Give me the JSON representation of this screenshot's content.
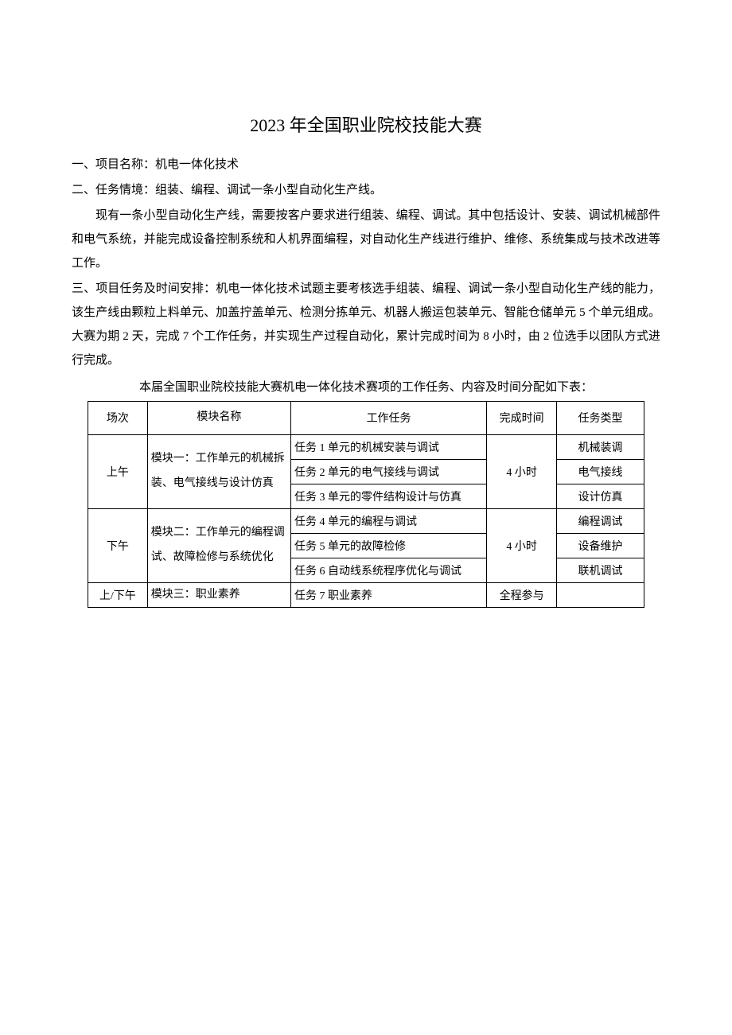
{
  "title": "2023 年全国职业院校技能大赛",
  "section1": "一、项目名称：机电一体化技术",
  "section2": "二、任务情境：组装、编程、调试一条小型自动化生产线。",
  "section2_p1": "现有一条小型自动化生产线，需要按客户要求进行组装、编程、调试。其中包括设计、安装、调试机械部件和电气系统，并能完成设备控制系统和人机界面编程，对自动化生产线进行维护、维修、系统集成与技术改进等工作。",
  "section3": "三、项目任务及时间安排：机电一体化技术试题主要考核选手组装、编程、调试一条小型自动化生产线的能力，该生产线由颗粒上料单元、加盖拧盖单元、检测分拣单元、机器人搬运包装单元、智能仓储单元 5 个单元组成。大赛为期 2 天，完成 7 个工作任务，并实现生产过程自动化，累计完成时间为 8 小时，由 2 位选手以团队方式进行完成。",
  "table_caption": "本届全国职业院校技能大赛机电一体化技术赛项的工作任务、内容及时间分配如下表：",
  "table": {
    "headers": {
      "session": "场次",
      "module": "模块名称",
      "task": "工作任务",
      "time": "完成时间",
      "type": "任务类型"
    },
    "rows": [
      {
        "session": "上午",
        "module": "模块一：工作单元的机械拆装、电气接线与设计仿真",
        "tasks": [
          {
            "task": "任务 1 单元的机械安装与调试",
            "type": "机械装调"
          },
          {
            "task": "任务 2 单元的电气接线与调试",
            "type": "电气接线"
          },
          {
            "task": "任务 3 单元的零件结构设计与仿真",
            "type": "设计仿真"
          }
        ],
        "time": "4 小时"
      },
      {
        "session": "下午",
        "module": "模块二：工作单元的编程调试、故障检修与系统优化",
        "tasks": [
          {
            "task": "任务 4 单元的编程与调试",
            "type": "编程调试"
          },
          {
            "task": "任务 5 单元的故障检修",
            "type": "设备维护"
          },
          {
            "task": "任务 6 自动线系统程序优化与调试",
            "type": "联机调试"
          }
        ],
        "time": "4 小时"
      },
      {
        "session": "上/下午",
        "module": "模块三：职业素养",
        "tasks": [
          {
            "task": "任务 7 职业素养",
            "type": ""
          }
        ],
        "time": "全程参与"
      }
    ]
  }
}
